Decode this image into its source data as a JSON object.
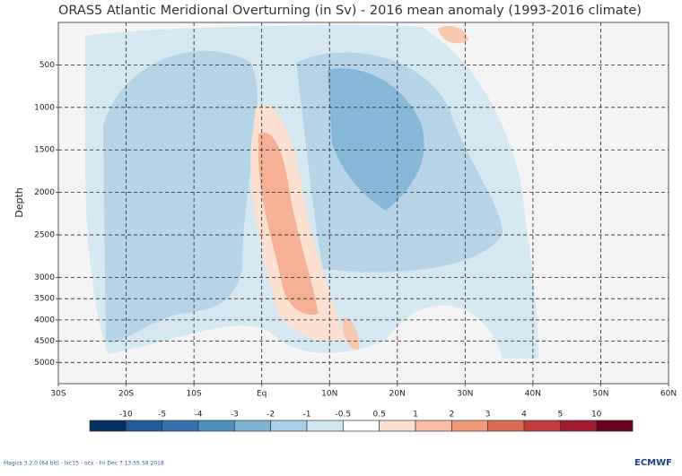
{
  "chart_data": {
    "type": "contour",
    "title": "ORAS5 Atlantic Meridional Overturning (in Sv) - 2016 mean anomaly (1993-2016 climate)",
    "y_label": "Depth",
    "xlim": [
      -30,
      60
    ],
    "xticks": [
      {
        "value": -30,
        "label": "30S"
      },
      {
        "value": -20,
        "label": "20S"
      },
      {
        "value": -10,
        "label": "10S"
      },
      {
        "value": 0,
        "label": "Eq"
      },
      {
        "value": 10,
        "label": "10N"
      },
      {
        "value": 20,
        "label": "20N"
      },
      {
        "value": 30,
        "label": "30N"
      },
      {
        "value": 40,
        "label": "40N"
      },
      {
        "value": 50,
        "label": "50N"
      },
      {
        "value": 60,
        "label": "60N"
      }
    ],
    "ylim": [
      0,
      5500
    ],
    "yticks": [
      500,
      1000,
      1500,
      2000,
      2500,
      3000,
      3500,
      4000,
      4500,
      5000
    ],
    "y_inverted": true,
    "grid": true,
    "colorbar": {
      "levels": [
        -10,
        -5,
        -4,
        -3,
        -2,
        -1,
        -0.5,
        0.5,
        1,
        2,
        3,
        4,
        5,
        10
      ],
      "colors": [
        "#053061",
        "#1f5a9a",
        "#3571ae",
        "#4f8fc0",
        "#7fb3d6",
        "#a8cfe4",
        "#d2e6f1",
        "#ffffff",
        "#fde0d0",
        "#f8bda4",
        "#f09a7a",
        "#dc6b55",
        "#c23b3b",
        "#a11a2d",
        "#6a0020"
      ]
    },
    "footer": "Magics 3.2.0 (64 bit) - lxc15 - ocx - Fri Dec  7 13:55:58 2018",
    "logo": "ECMWF"
  }
}
